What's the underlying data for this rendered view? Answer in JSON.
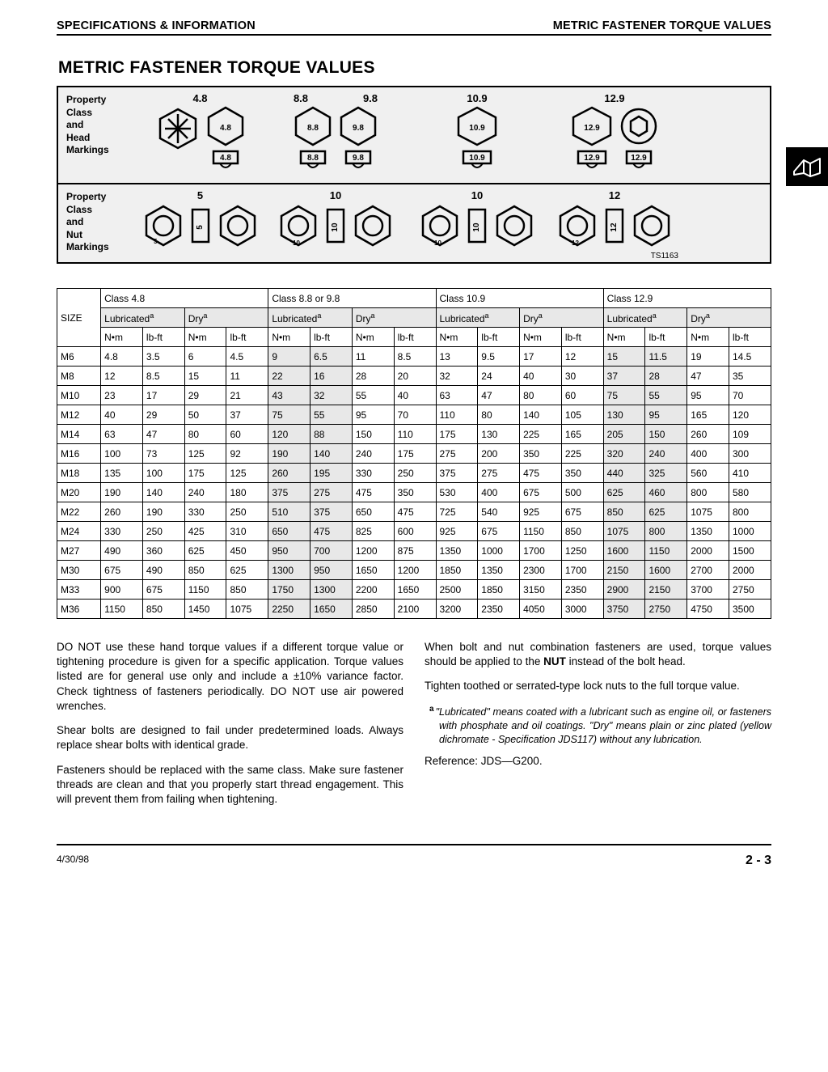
{
  "header": {
    "left": "SPECIFICATIONS & INFORMATION",
    "right": "METRIC FASTENER TORQUE VALUES"
  },
  "title": "METRIC FASTENER TORQUE VALUES",
  "markings": {
    "row1_label": "Property\nClass\nand\nHead\nMarkings",
    "row2_label": "Property\nClass\nand\nNut\nMarkings",
    "head_classes": [
      "4.8",
      "8.8",
      "9.8",
      "10.9",
      "12.9"
    ],
    "nut_classes": [
      "5",
      "10",
      "10",
      "12"
    ],
    "ts": "TS1163"
  },
  "table": {
    "class_headers": [
      "Class 4.8",
      "Class 8.8 or 9.8",
      "Class 10.9",
      "Class 12.9"
    ],
    "cond_headers": [
      "Lubricated",
      "Dry"
    ],
    "unit_headers": [
      "N•m",
      "lb-ft"
    ],
    "size_label": "SIZE",
    "sizes": [
      "M6",
      "M8",
      "M10",
      "M12",
      "M14",
      "M16",
      "M18",
      "M20",
      "M22",
      "M24",
      "M27",
      "M30",
      "M33",
      "M36"
    ],
    "rows": [
      [
        4.8,
        3.5,
        6,
        4.5,
        9,
        6.5,
        11,
        8.5,
        13,
        9.5,
        17,
        12,
        15,
        11.5,
        19,
        14.5
      ],
      [
        12,
        8.5,
        15,
        11,
        22,
        16,
        28,
        20,
        32,
        24,
        40,
        30,
        37,
        28,
        47,
        35
      ],
      [
        23,
        17,
        29,
        21,
        43,
        32,
        55,
        40,
        63,
        47,
        80,
        60,
        75,
        55,
        95,
        70
      ],
      [
        40,
        29,
        50,
        37,
        75,
        55,
        95,
        70,
        110,
        80,
        140,
        105,
        130,
        95,
        165,
        120
      ],
      [
        63,
        47,
        80,
        60,
        120,
        88,
        150,
        110,
        175,
        130,
        225,
        165,
        205,
        150,
        260,
        109
      ],
      [
        100,
        73,
        125,
        92,
        190,
        140,
        240,
        175,
        275,
        200,
        350,
        225,
        320,
        240,
        400,
        300
      ],
      [
        135,
        100,
        175,
        125,
        260,
        195,
        330,
        250,
        375,
        275,
        475,
        350,
        440,
        325,
        560,
        410
      ],
      [
        190,
        140,
        240,
        180,
        375,
        275,
        475,
        350,
        530,
        400,
        675,
        500,
        625,
        460,
        800,
        580
      ],
      [
        260,
        190,
        330,
        250,
        510,
        375,
        650,
        475,
        725,
        540,
        925,
        675,
        850,
        625,
        1075,
        800
      ],
      [
        330,
        250,
        425,
        310,
        650,
        475,
        825,
        600,
        925,
        675,
        1150,
        850,
        1075,
        800,
        1350,
        1000
      ],
      [
        490,
        360,
        625,
        450,
        950,
        700,
        1200,
        875,
        1350,
        1000,
        1700,
        1250,
        1600,
        1150,
        2000,
        1500
      ],
      [
        675,
        490,
        850,
        625,
        1300,
        950,
        1650,
        1200,
        1850,
        1350,
        2300,
        1700,
        2150,
        1600,
        2700,
        2000
      ],
      [
        900,
        675,
        1150,
        850,
        1750,
        1300,
        2200,
        1650,
        2500,
        1850,
        3150,
        2350,
        2900,
        2150,
        3700,
        2750
      ],
      [
        1150,
        850,
        1450,
        1075,
        2250,
        1650,
        2850,
        2100,
        3200,
        2350,
        4050,
        3000,
        3750,
        2750,
        4750,
        3500
      ]
    ]
  },
  "body": {
    "left": [
      "DO NOT use these hand torque values if a different torque value or tightening procedure is given for a specific application. Torque values listed are for general use only and include a ±10% variance factor. Check tightness of fasteners periodically. DO NOT use air powered wrenches.",
      "Shear bolts are designed to fail under predetermined loads. Always replace shear bolts with identical grade.",
      "Fasteners should be replaced with the same class. Make sure fastener threads are clean and that you properly start thread engagement. This will prevent them from failing when tightening."
    ],
    "right_p1": "When bolt and nut combination fasteners are used, torque values should be applied to the ",
    "right_p1_bold": "NUT",
    "right_p1_tail": " instead of the bolt head.",
    "right_p2": "Tighten toothed or serrated-type lock nuts to the full torque value.",
    "footnote": "\"Lubricated\" means coated with a lubricant such as engine oil, or fasteners with phosphate and oil coatings. \"Dry\" means plain or zinc plated (yellow dichromate - Specification JDS117) without any lubrication.",
    "reference": "Reference: JDS—G200."
  },
  "footer": {
    "date": "4/30/98",
    "page": "2 - 3"
  },
  "colors": {
    "page_bg": "#ffffff",
    "panel_bg": "#f0f0f0",
    "border": "#000000",
    "grey_cell": "#e8e8e8"
  }
}
